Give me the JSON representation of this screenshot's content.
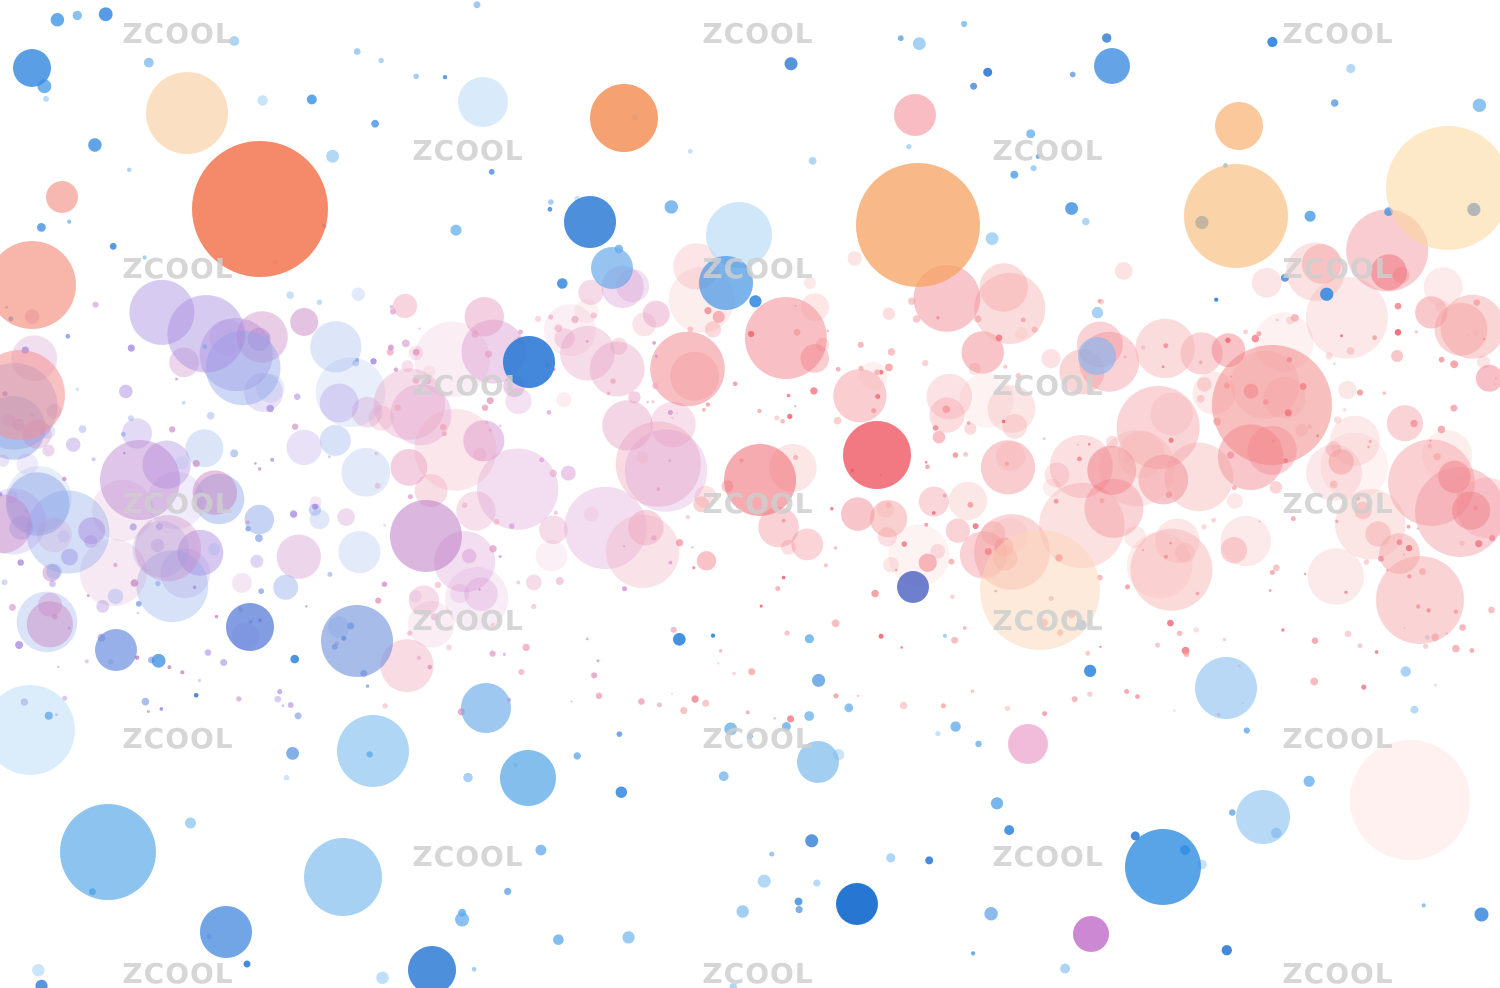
{
  "watermark": "ZCOOL"
}
